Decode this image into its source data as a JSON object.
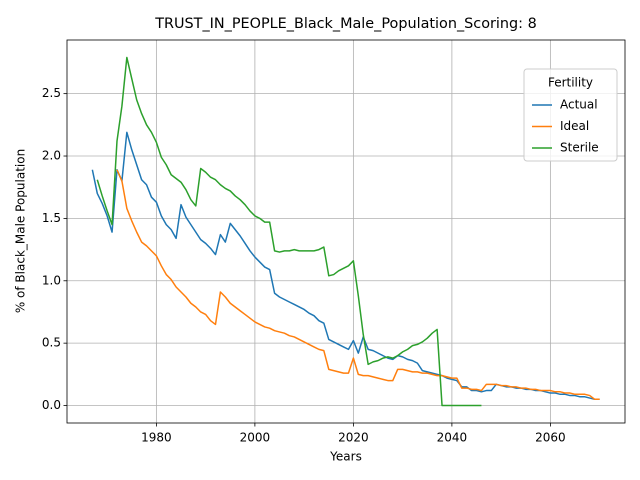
{
  "chart_data": {
    "type": "line",
    "title": "TRUST_IN_PEOPLE_Black_Male_Population_Scoring: 8",
    "x_label": "Years",
    "y_label": "% of Black_Male Population",
    "legend_title": "Fertility",
    "legend_position": "upper right",
    "grid": true,
    "x": [
      1967,
      1968,
      1969,
      1970,
      1971,
      1972,
      1973,
      1974,
      1975,
      1976,
      1977,
      1978,
      1979,
      1980,
      1981,
      1982,
      1983,
      1984,
      1985,
      1986,
      1987,
      1988,
      1989,
      1990,
      1991,
      1992,
      1993,
      1994,
      1995,
      1996,
      1997,
      1998,
      1999,
      2000,
      2001,
      2002,
      2003,
      2004,
      2005,
      2006,
      2007,
      2008,
      2009,
      2010,
      2011,
      2012,
      2013,
      2014,
      2015,
      2016,
      2017,
      2018,
      2019,
      2020,
      2021,
      2022,
      2023,
      2024,
      2025,
      2026,
      2027,
      2028,
      2029,
      2030,
      2031,
      2032,
      2033,
      2034,
      2035,
      2036,
      2037,
      2038,
      2039,
      2040,
      2041,
      2042,
      2043,
      2044,
      2045,
      2046,
      2047,
      2048,
      2049,
      2050,
      2051,
      2052,
      2053,
      2054,
      2055,
      2056,
      2057,
      2058,
      2059,
      2060,
      2061,
      2062,
      2063,
      2064,
      2065,
      2066,
      2067,
      2068,
      2069,
      2070
    ],
    "series": [
      {
        "name": "Actual",
        "color": "#1f77b4",
        "values": [
          1.89,
          1.7,
          1.62,
          1.52,
          1.39,
          1.89,
          1.8,
          2.19,
          2.05,
          1.93,
          1.81,
          1.77,
          1.67,
          1.63,
          1.52,
          1.45,
          1.41,
          1.34,
          1.61,
          1.51,
          1.45,
          1.39,
          1.33,
          1.3,
          1.26,
          1.21,
          1.37,
          1.31,
          1.46,
          1.41,
          1.36,
          1.3,
          1.24,
          1.19,
          1.15,
          1.11,
          1.09,
          0.9,
          0.87,
          0.85,
          0.83,
          0.81,
          0.79,
          0.77,
          0.74,
          0.72,
          0.68,
          0.66,
          0.53,
          0.51,
          0.49,
          0.47,
          0.45,
          0.52,
          0.42,
          0.55,
          0.45,
          0.44,
          0.42,
          0.4,
          0.38,
          0.37,
          0.4,
          0.39,
          0.37,
          0.36,
          0.34,
          0.28,
          0.27,
          0.26,
          0.25,
          0.24,
          0.22,
          0.21,
          0.2,
          0.15,
          0.15,
          0.12,
          0.12,
          0.11,
          0.12,
          0.12,
          0.17,
          0.16,
          0.15,
          0.15,
          0.14,
          0.14,
          0.13,
          0.13,
          0.12,
          0.12,
          0.11,
          0.1,
          0.1,
          0.09,
          0.09,
          0.08,
          0.08,
          0.07,
          0.07,
          0.06,
          0.05,
          0.05
        ]
      },
      {
        "name": "Ideal",
        "color": "#ff7f0e",
        "values": [
          null,
          null,
          null,
          null,
          null,
          1.89,
          1.8,
          1.58,
          1.48,
          1.39,
          1.31,
          1.28,
          1.24,
          1.2,
          1.12,
          1.05,
          1.01,
          0.95,
          0.91,
          0.87,
          0.82,
          0.79,
          0.75,
          0.73,
          0.68,
          0.65,
          0.91,
          0.87,
          0.82,
          0.79,
          0.76,
          0.73,
          0.7,
          0.67,
          0.65,
          0.63,
          0.62,
          0.6,
          0.59,
          0.58,
          0.56,
          0.55,
          0.53,
          0.51,
          0.49,
          0.47,
          0.45,
          0.44,
          0.29,
          0.28,
          0.27,
          0.26,
          0.26,
          0.38,
          0.25,
          0.24,
          0.24,
          0.23,
          0.22,
          0.21,
          0.2,
          0.2,
          0.29,
          0.29,
          0.28,
          0.27,
          0.27,
          0.26,
          0.26,
          0.25,
          0.24,
          0.24,
          0.23,
          0.22,
          0.22,
          0.14,
          0.14,
          0.13,
          0.13,
          0.12,
          0.17,
          0.17,
          0.17,
          0.16,
          0.16,
          0.15,
          0.15,
          0.14,
          0.14,
          0.13,
          0.13,
          0.12,
          0.12,
          0.12,
          0.11,
          0.11,
          0.1,
          0.1,
          0.09,
          0.09,
          0.09,
          0.08,
          0.05,
          0.05
        ]
      },
      {
        "name": "Sterile",
        "color": "#2ca02c",
        "values": [
          null,
          1.81,
          1.68,
          1.56,
          1.45,
          2.12,
          2.4,
          2.79,
          2.62,
          2.45,
          2.34,
          2.25,
          2.19,
          2.11,
          1.99,
          1.93,
          1.85,
          1.82,
          1.79,
          1.73,
          1.65,
          1.6,
          1.9,
          1.87,
          1.83,
          1.81,
          1.77,
          1.74,
          1.72,
          1.68,
          1.65,
          1.61,
          1.56,
          1.52,
          1.5,
          1.47,
          1.47,
          1.24,
          1.23,
          1.24,
          1.24,
          1.25,
          1.24,
          1.24,
          1.24,
          1.24,
          1.25,
          1.27,
          1.04,
          1.05,
          1.08,
          1.1,
          1.12,
          1.16,
          0.88,
          0.57,
          0.33,
          0.35,
          0.36,
          0.38,
          0.39,
          0.38,
          0.4,
          0.43,
          0.45,
          0.48,
          0.49,
          0.51,
          0.54,
          0.58,
          0.61,
          0,
          0,
          0,
          0,
          0,
          0,
          0,
          0,
          0,
          null,
          null,
          null,
          null,
          null,
          null,
          null,
          null,
          null,
          null,
          null,
          null,
          null,
          null,
          null,
          null,
          null,
          null,
          null,
          null,
          null,
          null,
          null,
          null
        ]
      }
    ],
    "xlim": [
      1961.85,
      2075.15
    ],
    "xticks": [
      1980,
      2000,
      2020,
      2040,
      2060
    ],
    "ylim": [
      -0.14,
      2.93
    ],
    "yticks": [
      {
        "value": 0,
        "label": "0.0"
      },
      {
        "value": 0.5,
        "label": "0.5"
      },
      {
        "value": 1,
        "label": "1.0"
      },
      {
        "value": 1.5,
        "label": "1.5"
      },
      {
        "value": 2,
        "label": "2.0"
      },
      {
        "value": 2.5,
        "label": "2.5"
      }
    ]
  }
}
